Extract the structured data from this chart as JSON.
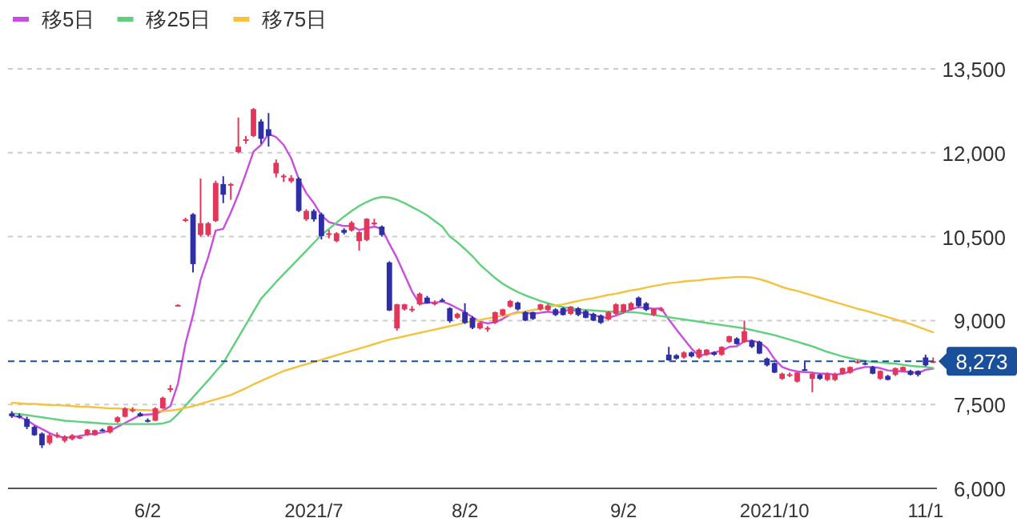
{
  "chart_data": {
    "type": "candlestick",
    "categories": [
      null,
      null,
      null,
      null,
      null,
      null,
      null,
      null,
      null,
      null,
      null,
      null,
      null,
      null,
      null,
      null,
      null,
      null,
      "6/2",
      null,
      null,
      null,
      null,
      null,
      null,
      null,
      null,
      null,
      null,
      null,
      null,
      null,
      null,
      null,
      null,
      null,
      null,
      null,
      null,
      null,
      "2021/7",
      null,
      null,
      null,
      null,
      null,
      null,
      null,
      null,
      null,
      null,
      null,
      null,
      null,
      null,
      null,
      null,
      null,
      null,
      null,
      "8/2",
      null,
      null,
      null,
      null,
      null,
      null,
      null,
      null,
      null,
      null,
      null,
      null,
      null,
      null,
      null,
      null,
      null,
      null,
      null,
      null,
      "9/2",
      null,
      null,
      null,
      null,
      null,
      null,
      null,
      null,
      null,
      null,
      null,
      null,
      null,
      null,
      null,
      null,
      null,
      null,
      null,
      "2021/10",
      null,
      null,
      null,
      null,
      null,
      null,
      null,
      null,
      null,
      null,
      null,
      null,
      null,
      null,
      null,
      null,
      null,
      null,
      null,
      "11/1",
      null
    ],
    "ohlc": [
      [
        7340,
        7380,
        7260,
        7290
      ],
      [
        7300,
        7340,
        7250,
        7270
      ],
      [
        7240,
        7280,
        7060,
        7100
      ],
      [
        7100,
        7120,
        6940,
        6950
      ],
      [
        6980,
        7000,
        6720,
        6770
      ],
      [
        6810,
        6980,
        6780,
        6950
      ],
      [
        6950,
        7000,
        6900,
        6960
      ],
      [
        6850,
        6950,
        6820,
        6930
      ],
      [
        6880,
        6970,
        6860,
        6950
      ],
      [
        6900,
        6940,
        6880,
        6920
      ],
      [
        6960,
        7060,
        6940,
        7050
      ],
      [
        6950,
        7050,
        6940,
        7040
      ],
      [
        7050,
        7070,
        7020,
        7030
      ],
      [
        7000,
        7120,
        6980,
        7110
      ],
      [
        7190,
        7290,
        7170,
        7270
      ],
      [
        7280,
        7450,
        7270,
        7430
      ],
      [
        7400,
        7450,
        7360,
        7410
      ],
      [
        7340,
        7360,
        7280,
        7290
      ],
      [
        7220,
        7250,
        7180,
        7210
      ],
      [
        7210,
        7450,
        7200,
        7430
      ],
      [
        7430,
        7640,
        7420,
        7620
      ],
      [
        7780,
        7850,
        7720,
        7790
      ],
      [
        9270,
        9290,
        9260,
        9280
      ],
      [
        10800,
        10840,
        10760,
        10810
      ],
      [
        10900,
        10920,
        9860,
        10010
      ],
      [
        10530,
        11540,
        10500,
        10740
      ],
      [
        10530,
        10760,
        10500,
        10740
      ],
      [
        10780,
        11500,
        10760,
        11460
      ],
      [
        11440,
        11580,
        11100,
        11250
      ],
      [
        11430,
        11460,
        11160,
        11440
      ],
      [
        12010,
        12630,
        11990,
        12110
      ],
      [
        12230,
        12300,
        12160,
        12240
      ],
      [
        12300,
        12800,
        12280,
        12780
      ],
      [
        12560,
        12600,
        12160,
        12250
      ],
      [
        12420,
        12710,
        12110,
        12300
      ],
      [
        11630,
        11880,
        11560,
        11820
      ],
      [
        11580,
        11620,
        11480,
        11590
      ],
      [
        11490,
        11600,
        11460,
        11550
      ],
      [
        11540,
        11560,
        10940,
        10960
      ],
      [
        10810,
        10990,
        10780,
        10960
      ],
      [
        10960,
        10990,
        10770,
        10810
      ],
      [
        10900,
        10930,
        10450,
        10510
      ],
      [
        10550,
        10620,
        10470,
        10560
      ],
      [
        10420,
        10580,
        10400,
        10560
      ],
      [
        10620,
        10650,
        10540,
        10570
      ],
      [
        10610,
        10780,
        10590,
        10750
      ],
      [
        10420,
        10600,
        10250,
        10580
      ],
      [
        10440,
        10830,
        10420,
        10820
      ],
      [
        10740,
        10820,
        10700,
        10750
      ],
      [
        10680,
        10700,
        10500,
        10530
      ],
      [
        10040,
        10060,
        9170,
        9180
      ],
      [
        8860,
        9300,
        8820,
        9290
      ],
      [
        9200,
        9300,
        9180,
        9290
      ],
      [
        9200,
        9260,
        9150,
        9210
      ],
      [
        9290,
        9500,
        9270,
        9480
      ],
      [
        9410,
        9440,
        9300,
        9310
      ],
      [
        9310,
        9360,
        9270,
        9320
      ],
      [
        9370,
        9400,
        9330,
        9360
      ],
      [
        9220,
        9240,
        8960,
        8990
      ],
      [
        9050,
        9140,
        9030,
        9120
      ],
      [
        9150,
        9310,
        8940,
        8960
      ],
      [
        9050,
        9080,
        8850,
        8870
      ],
      [
        8860,
        8970,
        8840,
        8960
      ],
      [
        8860,
        8900,
        8800,
        8870
      ],
      [
        8960,
        9160,
        8940,
        9150
      ],
      [
        9100,
        9210,
        9080,
        9200
      ],
      [
        9250,
        9370,
        9230,
        9350
      ],
      [
        9320,
        9340,
        9180,
        9200
      ],
      [
        9150,
        9170,
        8990,
        9000
      ],
      [
        9150,
        9160,
        9010,
        9030
      ],
      [
        9200,
        9300,
        9180,
        9290
      ],
      [
        9190,
        9300,
        9170,
        9270
      ],
      [
        9200,
        9220,
        9080,
        9100
      ],
      [
        9220,
        9240,
        9090,
        9100
      ],
      [
        9120,
        9260,
        9100,
        9250
      ],
      [
        9220,
        9240,
        9080,
        9100
      ],
      [
        9170,
        9190,
        9040,
        9050
      ],
      [
        9120,
        9140,
        8990,
        9000
      ],
      [
        9090,
        9110,
        8940,
        8960
      ],
      [
        9020,
        9170,
        9000,
        9150
      ],
      [
        9120,
        9310,
        9100,
        9290
      ],
      [
        9150,
        9300,
        9130,
        9290
      ],
      [
        9200,
        9330,
        9180,
        9310
      ],
      [
        9410,
        9430,
        9240,
        9260
      ],
      [
        9310,
        9330,
        9170,
        9190
      ],
      [
        9100,
        9220,
        9080,
        9210
      ],
      [
        9200,
        9240,
        9160,
        9210
      ],
      [
        8390,
        8530,
        8280,
        8290
      ],
      [
        8380,
        8400,
        8300,
        8320
      ],
      [
        8340,
        8450,
        8320,
        8430
      ],
      [
        8430,
        8450,
        8340,
        8360
      ],
      [
        8340,
        8500,
        8320,
        8480
      ],
      [
        8390,
        8490,
        8370,
        8480
      ],
      [
        8430,
        8450,
        8370,
        8390
      ],
      [
        8390,
        8540,
        8370,
        8530
      ],
      [
        8620,
        8730,
        8600,
        8720
      ],
      [
        8680,
        8700,
        8570,
        8580
      ],
      [
        8620,
        9000,
        8600,
        8810
      ],
      [
        8640,
        8660,
        8510,
        8530
      ],
      [
        8620,
        8640,
        8400,
        8410
      ],
      [
        8320,
        8340,
        8180,
        8200
      ],
      [
        8240,
        8250,
        8060,
        8070
      ],
      [
        7960,
        8070,
        7940,
        8050
      ],
      [
        8030,
        8070,
        7990,
        8040
      ],
      [
        7910,
        8080,
        7890,
        8070
      ],
      [
        8130,
        8260,
        8100,
        8120
      ],
      [
        7960,
        8070,
        7720,
        8050
      ],
      [
        8030,
        8050,
        7940,
        7960
      ],
      [
        7940,
        8070,
        7920,
        8050
      ],
      [
        7940,
        8070,
        7920,
        8050
      ],
      [
        8050,
        8160,
        8030,
        8150
      ],
      [
        8070,
        8180,
        8050,
        8170
      ],
      [
        8260,
        8290,
        8230,
        8270
      ],
      [
        8240,
        8270,
        8200,
        8230
      ],
      [
        8170,
        8190,
        8040,
        8050
      ],
      [
        7960,
        8110,
        7940,
        8100
      ],
      [
        8010,
        8030,
        7930,
        7940
      ],
      [
        8030,
        8160,
        8010,
        8150
      ],
      [
        8100,
        8180,
        8080,
        8170
      ],
      [
        8100,
        8120,
        8020,
        8030
      ],
      [
        8100,
        8110,
        8000,
        8030
      ],
      [
        8340,
        8390,
        8180,
        8200
      ],
      [
        8260,
        8340,
        8240,
        8273
      ]
    ],
    "colors": [
      "#2e2ea6",
      "#2e2ea6",
      "#2e2ea6",
      "#2e2ea6",
      "#2e2ea6",
      "#e2365a",
      "#e2365a",
      "#e2365a",
      "#e2365a",
      "#e2365a",
      "#e2365a",
      "#e2365a",
      "#2e2ea6",
      "#e2365a",
      "#e2365a",
      "#e2365a",
      "#e2365a",
      "#2e2ea6",
      "#2e2ea6",
      "#e2365a",
      "#e2365a",
      "#e2365a",
      "#e2365a",
      "#e2365a",
      "#2e2ea6",
      "#e2365a",
      "#e2365a",
      "#e2365a",
      "#2e2ea6",
      "#e2365a",
      "#e2365a",
      "#e2365a",
      "#e2365a",
      "#2e2ea6",
      "#2e2ea6",
      "#e2365a",
      "#e2365a",
      "#e2365a",
      "#2e2ea6",
      "#e2365a",
      "#2e2ea6",
      "#2e2ea6",
      "#e2365a",
      "#e2365a",
      "#2e2ea6",
      "#e2365a",
      "#e2365a",
      "#e2365a",
      "#e2365a",
      "#2e2ea6",
      "#2e2ea6",
      "#e2365a",
      "#e2365a",
      "#e2365a",
      "#e2365a",
      "#2e2ea6",
      "#e2365a",
      "#2e2ea6",
      "#2e2ea6",
      "#e2365a",
      "#2e2ea6",
      "#2e2ea6",
      "#e2365a",
      "#e2365a",
      "#e2365a",
      "#e2365a",
      "#e2365a",
      "#2e2ea6",
      "#2e2ea6",
      "#2e2ea6",
      "#e2365a",
      "#e2365a",
      "#2e2ea6",
      "#2e2ea6",
      "#e2365a",
      "#2e2ea6",
      "#2e2ea6",
      "#2e2ea6",
      "#2e2ea6",
      "#e2365a",
      "#e2365a",
      "#e2365a",
      "#e2365a",
      "#2e2ea6",
      "#2e2ea6",
      "#e2365a",
      "#e2365a",
      "#2e2ea6",
      "#2e2ea6",
      "#e2365a",
      "#2e2ea6",
      "#e2365a",
      "#e2365a",
      "#2e2ea6",
      "#e2365a",
      "#e2365a",
      "#2e2ea6",
      "#e2365a",
      "#2e2ea6",
      "#2e2ea6",
      "#2e2ea6",
      "#2e2ea6",
      "#e2365a",
      "#e2365a",
      "#e2365a",
      "#2e2ea6",
      "#e2365a",
      "#2e2ea6",
      "#e2365a",
      "#e2365a",
      "#e2365a",
      "#e2365a",
      "#e2365a",
      "#2e2ea6",
      "#2e2ea6",
      "#e2365a",
      "#2e2ea6",
      "#e2365a",
      "#e2365a",
      "#2e2ea6",
      "#2e2ea6",
      "#2e2ea6",
      "#e2365a"
    ],
    "series": [
      {
        "type": "line",
        "name": "移5日",
        "color": "#c94de0",
        "values": [
          7300,
          7280,
          7220,
          7130,
          7060,
          6990,
          6930,
          6910,
          6910,
          6940,
          6960,
          6980,
          7000,
          7030,
          7100,
          7170,
          7240,
          7310,
          7320,
          7330,
          7390,
          7470,
          7870,
          8590,
          9100,
          9730,
          10130,
          10610,
          10640,
          10930,
          11260,
          11630,
          12020,
          12140,
          12340,
          12280,
          12140,
          11900,
          11530,
          11280,
          11100,
          10880,
          10760,
          10720,
          10690,
          10690,
          10620,
          10650,
          10680,
          10640,
          10370,
          10120,
          9820,
          9520,
          9300,
          9320,
          9320,
          9340,
          9290,
          9220,
          9150,
          9060,
          8980,
          8950,
          8970,
          9030,
          9110,
          9150,
          9140,
          9120,
          9140,
          9160,
          9140,
          9160,
          9200,
          9160,
          9120,
          9100,
          9060,
          9050,
          9090,
          9140,
          9200,
          9240,
          9230,
          9210,
          9220,
          9020,
          8840,
          8670,
          8500,
          8370,
          8400,
          8430,
          8460,
          8530,
          8540,
          8630,
          8640,
          8610,
          8510,
          8310,
          8170,
          8120,
          8090,
          8080,
          8070,
          8050,
          8050,
          8030,
          8050,
          8090,
          8140,
          8170,
          8170,
          8150,
          8110,
          8100,
          8090,
          8080,
          8060,
          8120,
          8140
        ]
      },
      {
        "type": "line",
        "name": "移25日",
        "color": "#5fd07c",
        "values": [
          7340,
          7330,
          7310,
          7290,
          7270,
          7250,
          7230,
          7210,
          7200,
          7190,
          7180,
          7170,
          7160,
          7150,
          7150,
          7150,
          7150,
          7150,
          7150,
          7150,
          7160,
          7200,
          7330,
          7480,
          7630,
          7780,
          7930,
          8090,
          8240,
          8470,
          8700,
          8930,
          9160,
          9390,
          9540,
          9690,
          9830,
          9970,
          10110,
          10250,
          10390,
          10530,
          10640,
          10750,
          10860,
          10960,
          11050,
          11120,
          11180,
          11210,
          11200,
          11160,
          11100,
          11030,
          10960,
          10880,
          10780,
          10680,
          10500,
          10400,
          10280,
          10150,
          10000,
          9880,
          9760,
          9660,
          9580,
          9510,
          9450,
          9400,
          9350,
          9310,
          9270,
          9240,
          9220,
          9200,
          9190,
          9180,
          9170,
          9160,
          9160,
          9150,
          9150,
          9140,
          9120,
          9100,
          9080,
          9060,
          9040,
          9020,
          9000,
          8980,
          8960,
          8940,
          8920,
          8900,
          8880,
          8860,
          8830,
          8800,
          8770,
          8740,
          8700,
          8660,
          8620,
          8580,
          8540,
          8490,
          8440,
          8400,
          8360,
          8330,
          8300,
          8280,
          8260,
          8250,
          8240,
          8230,
          8210,
          8190,
          8180,
          8170,
          8150
        ]
      },
      {
        "type": "line",
        "name": "移75日",
        "color": "#f4c23c",
        "values": [
          7530,
          7520,
          7510,
          7510,
          7500,
          7490,
          7490,
          7480,
          7470,
          7460,
          7460,
          7450,
          7440,
          7430,
          7430,
          7420,
          7410,
          7400,
          7400,
          7390,
          7380,
          7390,
          7410,
          7440,
          7470,
          7510,
          7550,
          7590,
          7630,
          7670,
          7730,
          7790,
          7860,
          7920,
          7980,
          8040,
          8100,
          8140,
          8180,
          8220,
          8260,
          8300,
          8340,
          8380,
          8420,
          8460,
          8500,
          8540,
          8580,
          8620,
          8660,
          8690,
          8720,
          8750,
          8780,
          8810,
          8840,
          8870,
          8900,
          8930,
          8960,
          8990,
          9010,
          9040,
          9060,
          9090,
          9110,
          9140,
          9160,
          9190,
          9210,
          9240,
          9270,
          9290,
          9320,
          9350,
          9380,
          9400,
          9430,
          9460,
          9480,
          9510,
          9540,
          9560,
          9590,
          9620,
          9640,
          9670,
          9680,
          9700,
          9710,
          9720,
          9740,
          9750,
          9760,
          9770,
          9780,
          9780,
          9770,
          9740,
          9700,
          9650,
          9600,
          9560,
          9530,
          9490,
          9450,
          9410,
          9370,
          9330,
          9290,
          9250,
          9210,
          9180,
          9140,
          9100,
          9060,
          9020,
          8980,
          8940,
          8890,
          8840,
          8790
        ]
      }
    ],
    "ylim": [
      6000,
      13500
    ],
    "yticks": [
      {
        "value": 6000,
        "label": "6,000"
      },
      {
        "value": 7500,
        "label": "7,500"
      },
      {
        "value": 9000,
        "label": "9,000"
      },
      {
        "value": 10500,
        "label": "10,500"
      },
      {
        "value": 12000,
        "label": "12,000"
      },
      {
        "value": 13500,
        "label": "13,500"
      }
    ],
    "grid": "y",
    "legend": "top left",
    "ref_lines": [
      {
        "axis": "y",
        "value": 8273,
        "label": "8,273",
        "color": "#1a4f9c",
        "line_style": "dashed"
      }
    ]
  }
}
